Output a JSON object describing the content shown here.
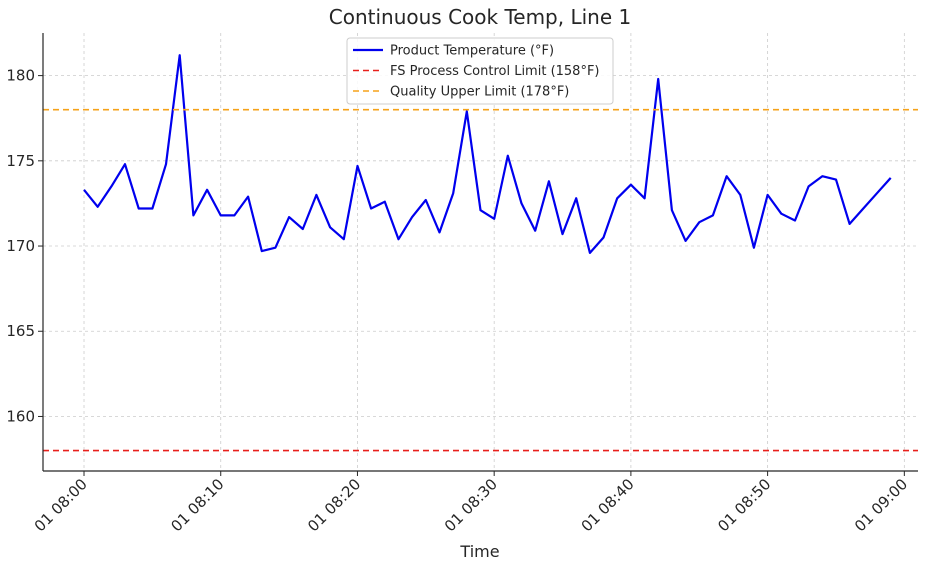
{
  "chart_data": {
    "type": "line",
    "title": "Continuous Cook Temp, Line 1",
    "xlabel": "Time",
    "ylabel": "",
    "x_start": "01 08:00",
    "x_step_minutes": 1,
    "xlim": [
      "01 07:57",
      "01 09:01"
    ],
    "ylim": [
      156.8,
      182.5
    ],
    "x_ticks": [
      "01 08:00",
      "01 08:10",
      "01 08:20",
      "01 08:30",
      "01 08:40",
      "01 08:50",
      "01 09:00"
    ],
    "y_ticks": [
      160,
      165,
      170,
      175,
      180
    ],
    "grid": true,
    "legend_position": "top-center",
    "series": [
      {
        "name": "Product Temperature (°F)",
        "color": "#0000ee",
        "style": "solid",
        "values": [
          173.3,
          172.3,
          173.5,
          174.8,
          172.2,
          172.2,
          174.8,
          181.2,
          171.8,
          173.3,
          171.8,
          171.8,
          172.9,
          169.7,
          169.9,
          171.7,
          171.0,
          173.0,
          171.1,
          170.4,
          174.7,
          172.2,
          172.6,
          170.4,
          171.7,
          172.7,
          170.8,
          173.1,
          177.9,
          172.1,
          171.6,
          175.3,
          172.5,
          170.9,
          173.8,
          170.7,
          172.8,
          169.6,
          170.5,
          172.8,
          173.6,
          172.8,
          179.8,
          172.1,
          170.3,
          171.4,
          171.8,
          174.1,
          173.0,
          169.9,
          173.0,
          171.9,
          171.5,
          173.5,
          174.1,
          173.9,
          171.3,
          172.2,
          173.1,
          174.0
        ]
      },
      {
        "name": "FS Process Control Limit (158°F)",
        "color": "#e8201c",
        "style": "dashed",
        "constant": 158
      },
      {
        "name": "Quality Upper Limit (178°F)",
        "color": "#f5a21a",
        "style": "dashed",
        "constant": 178
      }
    ]
  }
}
